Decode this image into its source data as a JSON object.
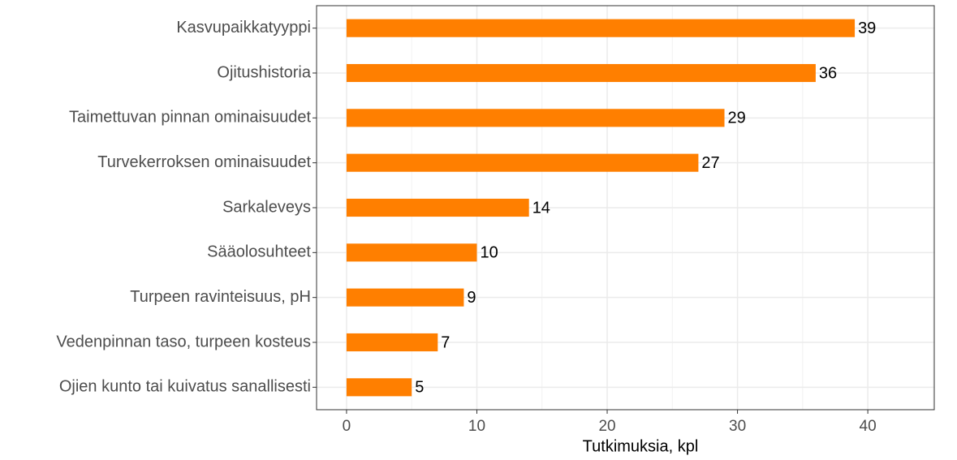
{
  "chart_data": {
    "type": "bar",
    "orientation": "horizontal",
    "x_label": "Tutkimuksia, kpl",
    "categories": [
      "Kasvupaikkatyyppi",
      "Ojitushistoria",
      "Taimettuvan pinnan ominaisuudet",
      "Turvekerroksen ominaisuudet",
      "Sarkaleveys",
      "Sääolosuhteet",
      "Turpeen ravinteisuus, pH",
      "Vedenpinnan taso, turpeen kosteus",
      "Ojien kunto tai kuivatus sanallisesti"
    ],
    "values": [
      39,
      36,
      29,
      27,
      14,
      10,
      9,
      7,
      5
    ],
    "color": "#ff7f00",
    "xlim": [
      -2.3,
      45.1
    ],
    "xticks": [
      0,
      10,
      20,
      30,
      40
    ],
    "minor_xticks": [
      5,
      15,
      25,
      35,
      45
    ],
    "grid": true
  }
}
